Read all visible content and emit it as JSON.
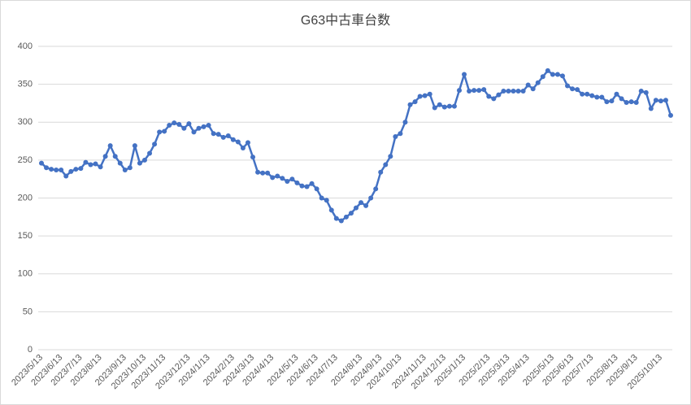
{
  "chart_data": {
    "type": "line",
    "title": "G63中古車台数",
    "categories": [
      "2023/5/13",
      null,
      null,
      null,
      "2023/6/13",
      null,
      null,
      null,
      "2023/7/13",
      null,
      null,
      null,
      "2023/8/13",
      null,
      null,
      null,
      null,
      "2023/9/13",
      null,
      null,
      null,
      "2023/10/13",
      null,
      null,
      null,
      "2023/11/13",
      null,
      null,
      null,
      null,
      "2023/12/13",
      null,
      null,
      null,
      "2024/1/13",
      null,
      null,
      null,
      null,
      "2024/2/13",
      null,
      null,
      null,
      "2024/3/13",
      null,
      null,
      null,
      "2024/4/13",
      null,
      null,
      null,
      null,
      "2024/5/13",
      null,
      null,
      null,
      "2024/6/13",
      null,
      null,
      null,
      "2024/7/13",
      null,
      null,
      null,
      null,
      "2024/8/13",
      null,
      null,
      null,
      "2024/9/13",
      null,
      null,
      null,
      "2024/10/13",
      null,
      null,
      null,
      null,
      "2024/11/13",
      null,
      null,
      null,
      "2024/12/13",
      null,
      null,
      null,
      "2025/1/13",
      null,
      null,
      null,
      null,
      "2025/2/13",
      null,
      null,
      null,
      "2025/3/13",
      null,
      null,
      null,
      "2025/4/13",
      null,
      null,
      null,
      null,
      "2025/5/13",
      null,
      null,
      null,
      "2025/6/13",
      null,
      null,
      null,
      "2025/7/13",
      null,
      null,
      null,
      null,
      "2025/8/13",
      null,
      null,
      null,
      "2025/9/13",
      null,
      null,
      null,
      null,
      "2025/10/13",
      null,
      null
    ],
    "values": [
      246,
      240,
      238,
      237,
      237,
      229,
      235,
      238,
      239,
      247,
      244,
      245,
      241,
      255,
      269,
      255,
      246,
      237,
      240,
      269,
      246,
      250,
      259,
      271,
      287,
      288,
      296,
      299,
      297,
      292,
      298,
      287,
      292,
      294,
      296,
      285,
      284,
      280,
      282,
      277,
      274,
      266,
      273,
      254,
      234,
      233,
      233,
      227,
      229,
      226,
      222,
      225,
      220,
      216,
      215,
      219,
      212,
      200,
      197,
      184,
      173,
      170,
      175,
      180,
      187,
      194,
      190,
      200,
      212,
      234,
      244,
      255,
      281,
      285,
      300,
      323,
      327,
      334,
      335,
      337,
      319,
      323,
      320,
      321,
      321,
      342,
      363,
      341,
      342,
      342,
      343,
      334,
      331,
      336,
      341,
      341,
      341,
      341,
      341,
      349,
      344,
      352,
      360,
      368,
      363,
      363,
      361,
      348,
      344,
      343,
      337,
      337,
      335,
      333,
      333,
      327,
      328,
      337,
      331,
      326,
      327,
      326,
      341,
      339,
      318,
      329,
      328,
      329,
      309
    ],
    "color": "#4472c4",
    "ylim": [
      0,
      400
    ],
    "yticks": [
      0,
      50,
      100,
      150,
      200,
      250,
      300,
      350,
      400
    ],
    "grid": true
  }
}
